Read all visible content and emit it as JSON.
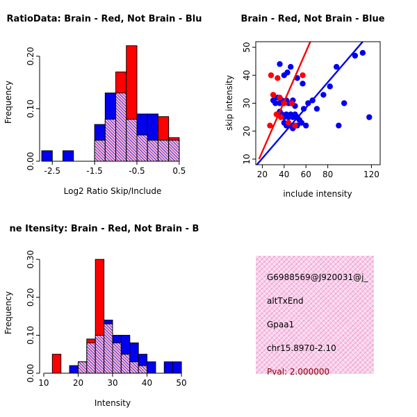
{
  "window": {
    "background": "#FFFFFF"
  },
  "colors": {
    "brain_red": "#FF0000",
    "not_brain_blue": "#0000EE",
    "axis": "#000000",
    "overlap_hatch": "#C040A0"
  },
  "chart_data": [
    {
      "id": "hist-ratio",
      "type": "bar",
      "subtype": "overlaid-histogram",
      "title": "RatioData: Brain - Red, Not Brain - Blu",
      "xlabel": "Log2 Ratio Skip/Include",
      "ylabel": "Frequency",
      "xlim": [
        -2.8,
        0.65
      ],
      "ylim": [
        0,
        0.225
      ],
      "xticks": [
        -2.5,
        -1.5,
        -0.5,
        0.5
      ],
      "xtick_labels": [
        "-2.5",
        "-1.5",
        "-0.5",
        "0.5"
      ],
      "yticks": [
        0,
        0.1,
        0.2
      ],
      "ytick_labels": [
        "0.00",
        "0.10",
        "0.20"
      ],
      "bin_breaks": [
        -2.75,
        -2.5,
        -2.25,
        -2.0,
        -1.75,
        -1.5,
        -1.25,
        -1.0,
        -0.75,
        -0.5,
        -0.25,
        0,
        0.25,
        0.5
      ],
      "series": [
        {
          "name": "Not Brain",
          "color": "#0000EE",
          "values": [
            0.02,
            0,
            0.02,
            0,
            0,
            0.07,
            0.13,
            0.13,
            0.08,
            0.09,
            0.09,
            0.04,
            0.04
          ]
        },
        {
          "name": "Brain",
          "color": "#FF0000",
          "values": [
            0,
            0,
            0,
            0,
            0,
            0.04,
            0.08,
            0.17,
            0.22,
            0.05,
            0.04,
            0.085,
            0.045
          ]
        }
      ],
      "overlap": "hatched-purple",
      "legend": "none",
      "grid": false
    },
    {
      "id": "scatter-skip-include",
      "type": "scatter",
      "title": "Brain - Red, Not Brain - Blue",
      "xlabel": "include intensity",
      "ylabel": "skip intensity",
      "xlim": [
        14,
        128
      ],
      "ylim": [
        8,
        52
      ],
      "xticks": [
        20,
        40,
        60,
        80,
        120
      ],
      "xtick_labels": [
        "20",
        "40",
        "60",
        "80",
        "120"
      ],
      "yticks": [
        10,
        20,
        30,
        40,
        50
      ],
      "ytick_labels": [
        "10",
        "20",
        "30",
        "40",
        "50"
      ],
      "series": [
        {
          "name": "Not Brain",
          "color": "#0000EE",
          "points": [
            [
              36,
              44
            ],
            [
              43,
              41
            ],
            [
              46,
              43
            ],
            [
              52,
              39
            ],
            [
              40,
              40
            ],
            [
              57,
              37
            ],
            [
              30,
              31
            ],
            [
              32,
              30
            ],
            [
              34,
              32
            ],
            [
              36,
              30
            ],
            [
              38,
              31
            ],
            [
              40,
              30
            ],
            [
              42,
              31
            ],
            [
              44,
              30
            ],
            [
              46,
              30
            ],
            [
              48,
              31
            ],
            [
              50,
              29
            ],
            [
              36,
              27
            ],
            [
              38,
              26
            ],
            [
              40,
              25
            ],
            [
              42,
              26
            ],
            [
              44,
              25
            ],
            [
              46,
              26
            ],
            [
              48,
              25
            ],
            [
              50,
              26
            ],
            [
              52,
              25
            ],
            [
              54,
              24
            ],
            [
              40,
              23
            ],
            [
              42,
              22
            ],
            [
              44,
              23
            ],
            [
              46,
              22
            ],
            [
              48,
              21
            ],
            [
              52,
              22
            ],
            [
              56,
              23
            ],
            [
              60,
              22
            ],
            [
              58,
              28
            ],
            [
              62,
              30
            ],
            [
              66,
              31
            ],
            [
              70,
              28
            ],
            [
              76,
              33
            ],
            [
              82,
              36
            ],
            [
              88,
              43
            ],
            [
              95,
              30
            ],
            [
              90,
              22
            ],
            [
              105,
              47
            ],
            [
              112,
              48
            ],
            [
              118,
              25
            ]
          ]
        },
        {
          "name": "Brain",
          "color": "#FF0000",
          "points": [
            [
              28,
              40
            ],
            [
              34,
              39
            ],
            [
              30,
              33
            ],
            [
              36,
              32
            ],
            [
              40,
              30
            ],
            [
              33,
              26
            ],
            [
              37,
              25
            ],
            [
              44,
              23
            ],
            [
              50,
              22
            ],
            [
              27,
              22
            ],
            [
              57,
              40
            ],
            [
              47,
              30
            ]
          ]
        }
      ],
      "lines": [
        {
          "name": "brain-fit",
          "color": "#FF0000",
          "x1": 17,
          "y1": 10,
          "x2": 64,
          "y2": 52
        },
        {
          "name": "not-brain-fit",
          "color": "#0000EE",
          "x1": 15,
          "y1": 8,
          "x2": 112,
          "y2": 52
        }
      ],
      "legend": "none",
      "grid": false
    },
    {
      "id": "hist-intensity",
      "type": "bar",
      "subtype": "overlaid-histogram",
      "title": "ne Itensity: Brain - Red, Not Brain - B",
      "xlabel": "Intensity",
      "ylabel": "Frequency",
      "xlim": [
        8.8,
        51.2
      ],
      "ylim": [
        0,
        0.315
      ],
      "xticks": [
        10,
        20,
        30,
        40,
        50
      ],
      "xtick_labels": [
        "10",
        "20",
        "30",
        "40",
        "50"
      ],
      "yticks": [
        0,
        0.1,
        0.2,
        0.3
      ],
      "ytick_labels": [
        "0.00",
        "0.10",
        "0.20",
        "0.30"
      ],
      "bin_breaks": [
        10,
        12.5,
        15,
        17.5,
        20,
        22.5,
        25,
        27.5,
        30,
        32.5,
        35,
        37.5,
        40,
        42.5,
        45,
        47.5,
        50
      ],
      "series": [
        {
          "name": "Not Brain",
          "color": "#0000EE",
          "values": [
            0,
            0,
            0,
            0.02,
            0.03,
            0.08,
            0.1,
            0.14,
            0.1,
            0.1,
            0.08,
            0.05,
            0.03,
            0,
            0.03,
            0.03
          ]
        },
        {
          "name": "Brain",
          "color": "#FF0000",
          "values": [
            0,
            0.05,
            0,
            0,
            0.03,
            0.09,
            0.3,
            0.13,
            0.08,
            0.05,
            0.03,
            0.02,
            0,
            0,
            0,
            0
          ]
        }
      ],
      "overlap": "hatched-purple",
      "legend": "none",
      "grid": false
    }
  ],
  "info_box": {
    "bg_color": "#F9D0EB",
    "text_color": "#000000",
    "lines": [
      "G6988569@J920031@j_",
      "altTxEnd",
      "Gpaa1",
      "chr15.8970-2.10"
    ],
    "pval": "Pval: 2.000000",
    "pval_color": "#8B0000"
  }
}
